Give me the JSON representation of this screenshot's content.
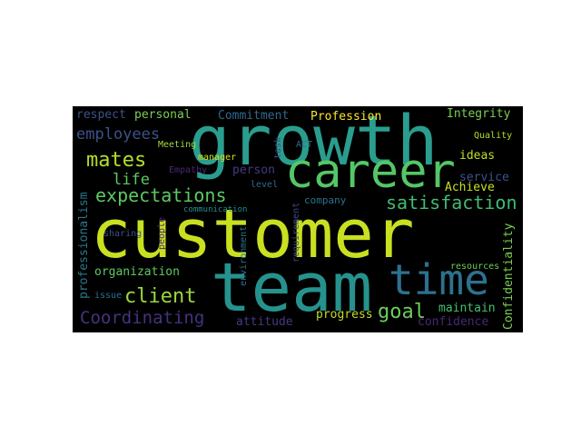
{
  "word_cloud": {
    "background": "#000000",
    "words": [
      {
        "text": "customer",
        "color": "#c8e020"
      },
      {
        "text": "growth",
        "color": "#2a9d8e"
      },
      {
        "text": "team",
        "color": "#26928d"
      },
      {
        "text": "career",
        "color": "#55c667"
      },
      {
        "text": "time",
        "color": "#2c728e"
      },
      {
        "text": "satisfaction",
        "color": "#3fbc73"
      },
      {
        "text": "expectations",
        "color": "#5dc962"
      },
      {
        "text": "mates",
        "color": "#b5de2b"
      },
      {
        "text": "client",
        "color": "#9bd93c"
      },
      {
        "text": "goal",
        "color": "#6ccd5a"
      },
      {
        "text": "Coordinating",
        "color": "#46327e"
      },
      {
        "text": "employees",
        "color": "#3b528b"
      },
      {
        "text": "life",
        "color": "#5dc962"
      },
      {
        "text": "respect",
        "color": "#3b528b"
      },
      {
        "text": "personal",
        "color": "#7ad151"
      },
      {
        "text": "Commitment",
        "color": "#31688e"
      },
      {
        "text": "Profession",
        "color": "#fde725"
      },
      {
        "text": "Integrity",
        "color": "#7ad151"
      },
      {
        "text": "Quality",
        "color": "#b5de2b"
      },
      {
        "text": "Meeting",
        "color": "#a0da39"
      },
      {
        "text": "manager",
        "color": "#d8e219"
      },
      {
        "text": "Empathy",
        "color": "#482878"
      },
      {
        "text": "ACT",
        "color": "#2c728e"
      },
      {
        "text": "task",
        "color": "#3e4a89"
      },
      {
        "text": "ideas",
        "color": "#c2df23"
      },
      {
        "text": "service",
        "color": "#3b528b"
      },
      {
        "text": "Achieve",
        "color": "#c8e020"
      },
      {
        "text": "person",
        "color": "#443983"
      },
      {
        "text": "level",
        "color": "#31688e"
      },
      {
        "text": "company",
        "color": "#2c728e"
      },
      {
        "text": "communication",
        "color": "#21918c"
      },
      {
        "text": "sharing",
        "color": "#3b528b"
      },
      {
        "text": "people",
        "color": "#482878"
      },
      {
        "text": "environment",
        "color": "#2c728e"
      },
      {
        "text": "requirement",
        "color": "#3e4a89"
      },
      {
        "text": "professionalism",
        "color": "#2a788e"
      },
      {
        "text": "Confidentiality",
        "color": "#7ad151"
      },
      {
        "text": "organization",
        "color": "#5ec962"
      },
      {
        "text": "resources",
        "color": "#6ece58"
      },
      {
        "text": "issue",
        "color": "#2c728e"
      },
      {
        "text": "maintain",
        "color": "#44bf70"
      },
      {
        "text": "progress",
        "color": "#c2df23"
      },
      {
        "text": "attitude",
        "color": "#443983"
      },
      {
        "text": "confidence",
        "color": "#482878"
      }
    ]
  }
}
